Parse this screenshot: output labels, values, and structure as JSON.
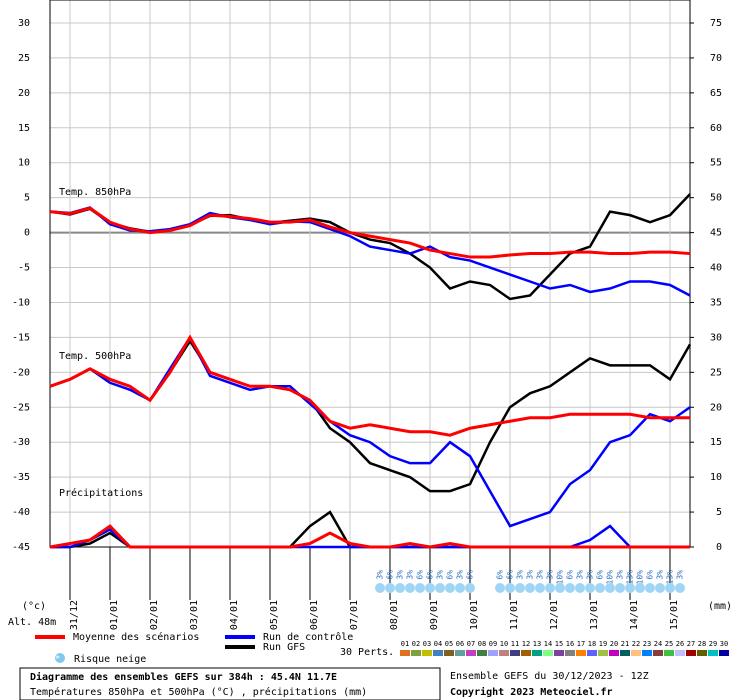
{
  "chart_data": {
    "type": "line",
    "panel_labels": [
      "Temp. 850hPa",
      "Temp. 500hPa",
      "Précipitations"
    ],
    "ylabel": "(°c)",
    "y2label": "(mm)",
    "altitude": "Alt. 48m",
    "x": [
      0,
      12,
      24,
      36,
      48,
      60,
      72,
      84,
      96,
      108,
      120,
      132,
      144,
      156,
      168,
      180,
      192,
      204,
      216,
      228,
      240,
      252,
      264,
      276,
      288,
      300,
      312,
      324,
      336,
      348,
      360,
      372,
      384
    ],
    "xlim": [
      0,
      384
    ],
    "xticks": [
      {
        "value": 12,
        "label": "31/12"
      },
      {
        "value": 36,
        "label": "01/01"
      },
      {
        "value": 60,
        "label": "02/01"
      },
      {
        "value": 84,
        "label": "03/01"
      },
      {
        "value": 108,
        "label": "04/01"
      },
      {
        "value": 132,
        "label": "05/01"
      },
      {
        "value": 156,
        "label": "06/01"
      },
      {
        "value": 180,
        "label": "07/01"
      },
      {
        "value": 204,
        "label": "08/01"
      },
      {
        "value": 228,
        "label": "09/01"
      },
      {
        "value": 252,
        "label": "10/01"
      },
      {
        "value": 276,
        "label": "11/01"
      },
      {
        "value": 300,
        "label": "12/01"
      },
      {
        "value": 324,
        "label": "13/01"
      },
      {
        "value": 348,
        "label": "14/01"
      },
      {
        "value": 372,
        "label": "15/01"
      }
    ],
    "ylim": [
      -45,
      30
    ],
    "yticks": [
      30,
      25,
      20,
      15,
      10,
      5,
      0,
      -5,
      -10,
      -15,
      -20,
      -25,
      -30,
      -35,
      -40,
      -45
    ],
    "y2lim": [
      0,
      75
    ],
    "y2ticks": [
      75,
      70,
      65,
      60,
      55,
      50,
      45,
      40,
      35,
      30,
      25,
      20,
      15,
      10,
      5,
      0
    ],
    "grid": true,
    "series": [
      {
        "name": "Moyenne des scénarios",
        "color": "#ff0000",
        "t850": [
          3,
          2.7,
          3.5,
          1.5,
          0.5,
          0,
          0.3,
          1,
          2.5,
          2.3,
          2,
          1.5,
          1.5,
          1.8,
          0.8,
          0,
          -0.5,
          -1,
          -1.5,
          -2.5,
          -3,
          -3.5,
          -3.5,
          -3.2,
          -3,
          -3,
          -2.8,
          -2.8,
          -3,
          -3,
          -2.8,
          -2.8,
          -3
        ],
        "t500": [
          -22,
          -21,
          -19.5,
          -21,
          -22,
          -24,
          -20,
          -15,
          -20,
          -21,
          -22,
          -22,
          -22.5,
          -24,
          -27,
          -28,
          -27.5,
          -28,
          -28.5,
          -28.5,
          -29,
          -28,
          -27.5,
          -27,
          -26.5,
          -26.5,
          -26,
          -26,
          -26,
          -26,
          -26.5,
          -26.5,
          -26.5
        ],
        "precip": [
          0,
          0.5,
          1,
          3,
          0,
          0,
          0,
          0,
          0,
          0,
          0,
          0,
          0,
          0.5,
          2,
          0.5,
          0,
          0,
          0.5,
          0,
          0.5,
          0,
          0,
          0,
          0,
          0,
          0,
          0,
          0,
          0,
          0,
          0,
          0
        ]
      },
      {
        "name": "Run de contrôle",
        "color": "#0000ff",
        "t850": [
          3,
          2.8,
          3.6,
          1.2,
          0.3,
          0.2,
          0.5,
          1.2,
          2.8,
          2.2,
          1.8,
          1.2,
          1.6,
          1.5,
          0.5,
          -0.5,
          -2,
          -2.5,
          -3,
          -2,
          -3.5,
          -4,
          -5,
          -6,
          -7,
          -8,
          -7.5,
          -8.5,
          -8,
          -7,
          -7,
          -7.5,
          -9
        ],
        "t500": [
          -22,
          -21,
          -19.5,
          -21.5,
          -22.5,
          -24,
          -19.5,
          -15,
          -20.5,
          -21.5,
          -22.5,
          -22,
          -22,
          -24.5,
          -27,
          -29,
          -30,
          -32,
          -33,
          -33,
          -30,
          -32,
          -37,
          -42,
          -41,
          -40,
          -36,
          -34,
          -30,
          -29,
          -26,
          -27,
          -25
        ],
        "precip": [
          0,
          0,
          1,
          2.5,
          0,
          0,
          0,
          0,
          0,
          0,
          0,
          0,
          0,
          0,
          0,
          0,
          0,
          0,
          0,
          0,
          0,
          0,
          0,
          0,
          0,
          0,
          0,
          1,
          3,
          0,
          0,
          0,
          0
        ]
      },
      {
        "name": "Run GFS",
        "color": "#000000",
        "t850": [
          3,
          2.6,
          3.4,
          1.4,
          0.6,
          0.1,
          0.4,
          1.1,
          2.4,
          2.5,
          1.9,
          1.4,
          1.7,
          2,
          1.5,
          0,
          -1,
          -1.5,
          -3,
          -5,
          -8,
          -7,
          -7.5,
          -9.5,
          -9,
          -6,
          -3,
          -2,
          3,
          2.5,
          1.5,
          2.5,
          5.5
        ],
        "t500": [
          -22,
          -21,
          -19.5,
          -21,
          -22,
          -24,
          -20,
          -15.5,
          -20,
          -21,
          -22,
          -22,
          -22.5,
          -24,
          -28,
          -30,
          -33,
          -34,
          -35,
          -37,
          -37,
          -36,
          -30,
          -25,
          -23,
          -22,
          -20,
          -18,
          -19,
          -19,
          -19,
          -21,
          -16
        ],
        "precip": [
          0,
          0,
          0.5,
          2,
          0,
          0,
          0,
          0,
          0,
          0,
          0,
          0,
          0,
          3,
          5,
          0,
          0,
          0,
          0,
          0,
          0,
          0,
          0,
          0,
          0,
          0,
          0,
          0,
          0,
          0,
          0,
          0,
          0
        ]
      }
    ],
    "snow": {
      "name": "Risque neige",
      "x": [
        198,
        204,
        210,
        216,
        222,
        228,
        234,
        240,
        246,
        252,
        270,
        276,
        282,
        288,
        294,
        300,
        306,
        312,
        318,
        324,
        330,
        336,
        342,
        348,
        354,
        360,
        366,
        372,
        378
      ],
      "values": [
        3,
        6,
        3,
        3,
        6,
        6,
        3,
        6,
        3,
        6,
        6,
        6,
        3,
        3,
        3,
        3,
        10,
        6,
        3,
        3,
        6,
        10,
        3,
        13,
        10,
        6,
        3,
        13,
        3
      ],
      "value_labels": [
        "3%",
        "6%",
        "3%",
        "3%",
        "6%",
        "6%",
        "3%",
        "6%",
        "3%",
        "6%",
        "6%",
        "6%",
        "3%",
        "3%",
        "3%",
        "3%",
        "10%",
        "6%",
        "3%",
        "3%",
        "6%",
        "10%",
        "3%",
        "13%",
        "10%",
        "6%",
        "3%",
        "13%",
        "3%"
      ]
    },
    "perturbations": {
      "title": "30 Perts.",
      "labels": [
        "01",
        "02",
        "03",
        "04",
        "05",
        "06",
        "07",
        "08",
        "09",
        "10",
        "11",
        "12",
        "13",
        "14",
        "15",
        "16",
        "17",
        "18",
        "19",
        "20",
        "21",
        "22",
        "23",
        "24",
        "25",
        "26",
        "27",
        "28",
        "29",
        "30"
      ],
      "colors": [
        "#e07020",
        "#80a040",
        "#c0c000",
        "#4080c0",
        "#806020",
        "#60a0a0",
        "#c040c0",
        "#408040",
        "#a0a0ff",
        "#c08080",
        "#404080",
        "#a06000",
        "#00a080",
        "#80ff80",
        "#8040a0",
        "#808080",
        "#ff8000",
        "#6060ff",
        "#a0c040",
        "#c000c0",
        "#006060",
        "#ffc080",
        "#0080ff",
        "#804040",
        "#40c040",
        "#c0c0ff",
        "#a00000",
        "#606000",
        "#00c0c0",
        "#0000a0"
      ]
    },
    "footer": {
      "left_title": "Diagramme des ensembles GEFS sur 384h : 45.4N 11.7E",
      "left_sub": "Températures 850hPa et 500hPa (°C) , précipitations (mm)",
      "right_run": "Ensemble GEFS du 30/12/2023 - 12Z",
      "right_copy": "Copyright 2023 Meteociel.fr"
    }
  }
}
